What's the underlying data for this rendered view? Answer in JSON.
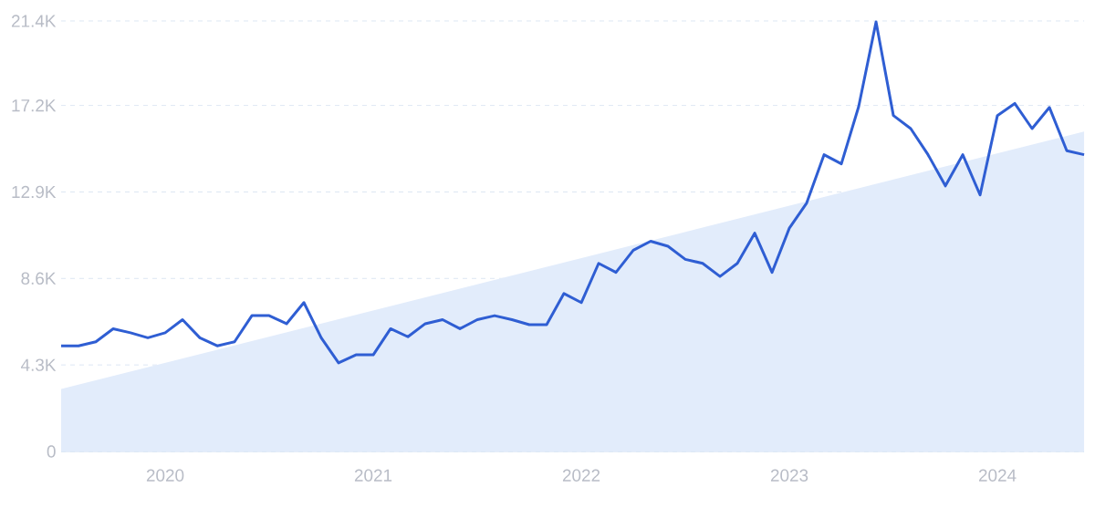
{
  "chart_data": {
    "type": "line",
    "x": [
      "2019-07",
      "2019-08",
      "2019-09",
      "2019-10",
      "2019-11",
      "2019-12",
      "2020-01",
      "2020-02",
      "2020-03",
      "2020-04",
      "2020-05",
      "2020-06",
      "2020-07",
      "2020-08",
      "2020-09",
      "2020-10",
      "2020-11",
      "2020-12",
      "2021-01",
      "2021-02",
      "2021-03",
      "2021-04",
      "2021-05",
      "2021-06",
      "2021-07",
      "2021-08",
      "2021-09",
      "2021-10",
      "2021-11",
      "2021-12",
      "2022-01",
      "2022-02",
      "2022-03",
      "2022-04",
      "2022-05",
      "2022-06",
      "2022-07",
      "2022-08",
      "2022-09",
      "2022-10",
      "2022-11",
      "2022-12",
      "2023-01",
      "2023-02",
      "2023-03",
      "2023-04",
      "2023-05",
      "2023-06",
      "2023-07",
      "2023-08",
      "2023-09",
      "2023-10",
      "2023-11",
      "2023-12",
      "2024-01",
      "2024-02",
      "2024-03",
      "2024-04",
      "2024-05",
      "2024-06"
    ],
    "series": [
      {
        "type": "area",
        "color": "#e2ecfb",
        "x": [
          "2019-07",
          "2024-06"
        ],
        "values": [
          3100,
          15900
        ]
      },
      {
        "color": "#2f5ed3",
        "values": [
          5250,
          5250,
          5450,
          6100,
          5900,
          5650,
          5900,
          6550,
          5650,
          5250,
          5450,
          6750,
          6750,
          6350,
          7400,
          5650,
          4400,
          4800,
          4800,
          6100,
          5700,
          6350,
          6550,
          6100,
          6550,
          6750,
          6550,
          6300,
          6300,
          7850,
          7400,
          9350,
          8900,
          10000,
          10450,
          10200,
          9550,
          9350,
          8700,
          9350,
          10850,
          8900,
          11100,
          12350,
          14750,
          14300,
          17150,
          21350,
          16700,
          16050,
          14750,
          13200,
          14750,
          12750,
          16700,
          17300,
          16050,
          17100,
          14950,
          14750
        ]
      }
    ],
    "xlim": [
      "2019-07",
      "2024-06"
    ],
    "xticks": [
      "2020",
      "2021",
      "2022",
      "2023",
      "2024"
    ],
    "ylim": [
      0,
      21400
    ],
    "yticks": [
      0,
      {
        "value": 4300,
        "label": "4.3K"
      },
      {
        "value": 8600,
        "label": "8.6K"
      },
      {
        "value": 12900,
        "label": "12.9K"
      },
      {
        "value": 17200,
        "label": "17.2K"
      },
      {
        "value": 21400,
        "label": "21.4K"
      }
    ],
    "grid": "y"
  }
}
